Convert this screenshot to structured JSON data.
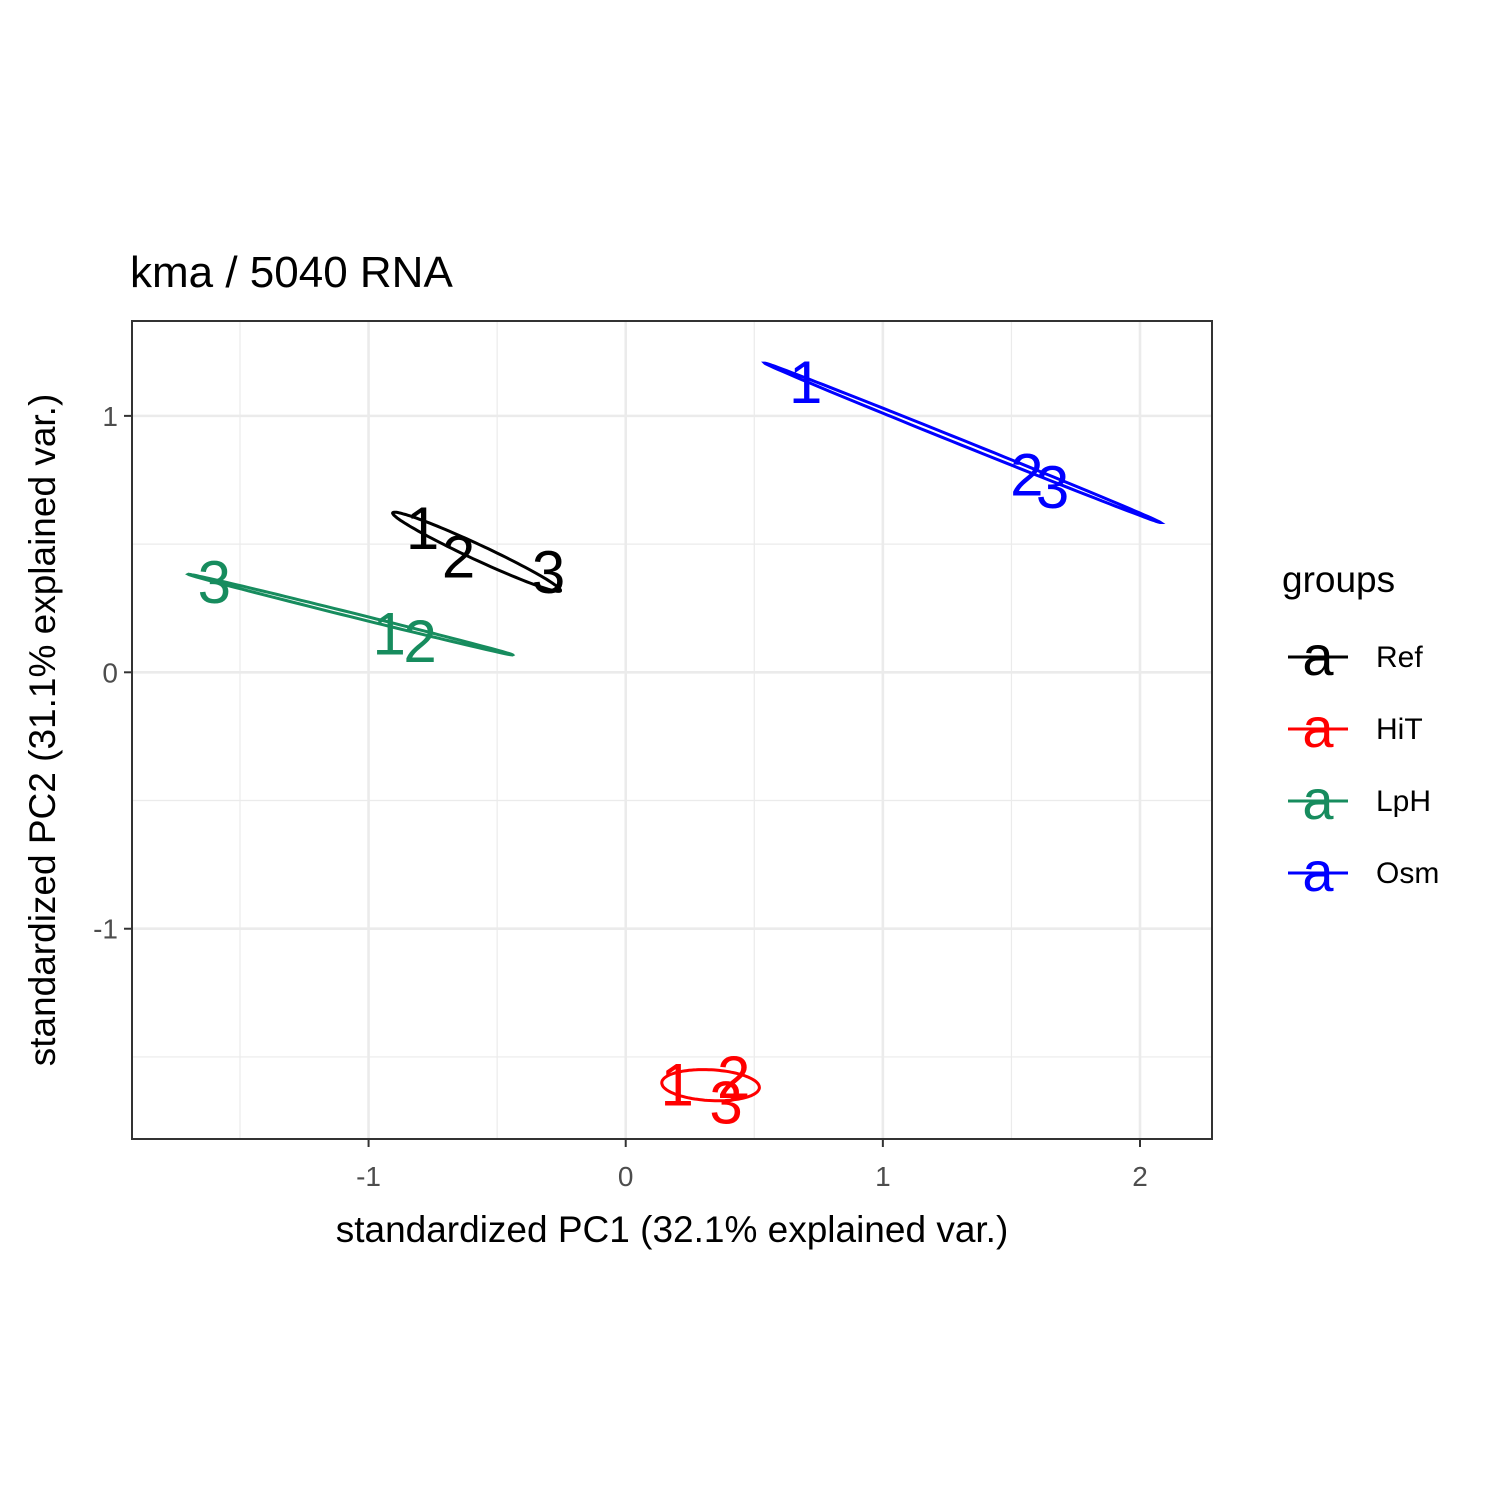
{
  "chart_data": {
    "type": "scatter",
    "title": "kma /  5040  RNA",
    "xlabel": "standardized PC1 (32.1% explained var.)",
    "ylabel": "standardized PC2 (31.1% explained var.)",
    "xlim": [
      -1.92,
      2.28
    ],
    "ylim": [
      -1.82,
      1.37
    ],
    "x_ticks": [
      -1,
      0,
      1,
      2
    ],
    "x_tick_labels": [
      "-1",
      "0",
      "1",
      "2"
    ],
    "y_ticks": [
      -1,
      0,
      1
    ],
    "y_tick_labels": [
      "-1",
      "0",
      "1"
    ],
    "x_minor_ticks": [
      -1.5,
      -0.5,
      0.5,
      1.5
    ],
    "y_minor_ticks": [
      -1.5,
      -0.5,
      0.5
    ],
    "grid": true,
    "legend": {
      "title": "groups",
      "placement": "right",
      "key_glyph": "a"
    },
    "series": [
      {
        "name": "Ref",
        "color": "#000000",
        "points": [
          {
            "label": "1",
            "x": -0.79,
            "y": 0.56
          },
          {
            "label": "2",
            "x": -0.65,
            "y": 0.45
          },
          {
            "label": "3",
            "x": -0.3,
            "y": 0.39
          }
        ],
        "ellipse": {
          "cx": -0.58,
          "cy": 0.47,
          "semi_major": 0.36,
          "semi_minor": 0.03,
          "angle_deg": -25
        }
      },
      {
        "name": "HiT",
        "color": "#ff0000",
        "points": [
          {
            "label": "1",
            "x": 0.2,
            "y": -1.61
          },
          {
            "label": "2",
            "x": 0.42,
            "y": -1.58
          },
          {
            "label": "3",
            "x": 0.39,
            "y": -1.68
          }
        ],
        "ellipse": {
          "cx": 0.33,
          "cy": -1.61,
          "semi_major": 0.19,
          "semi_minor": 0.06,
          "angle_deg": -3
        }
      },
      {
        "name": "LpH",
        "color": "#178c5e",
        "points": [
          {
            "label": "3",
            "x": -1.6,
            "y": 0.35
          },
          {
            "label": "1",
            "x": -0.92,
            "y": 0.15
          },
          {
            "label": "2",
            "x": -0.8,
            "y": 0.12
          }
        ],
        "ellipse": {
          "cx": -1.07,
          "cy": 0.225,
          "semi_major": 0.65,
          "semi_minor": 0.008,
          "angle_deg": -14
        }
      },
      {
        "name": "Osm",
        "color": "#0000ff",
        "points": [
          {
            "label": "1",
            "x": 0.7,
            "y": 1.13
          },
          {
            "label": "2",
            "x": 1.56,
            "y": 0.77
          },
          {
            "label": "3",
            "x": 1.66,
            "y": 0.72
          }
        ],
        "ellipse": {
          "cx": 1.31,
          "cy": 0.895,
          "semi_major": 0.83,
          "semi_minor": 0.01,
          "angle_deg": -22
        }
      }
    ]
  }
}
